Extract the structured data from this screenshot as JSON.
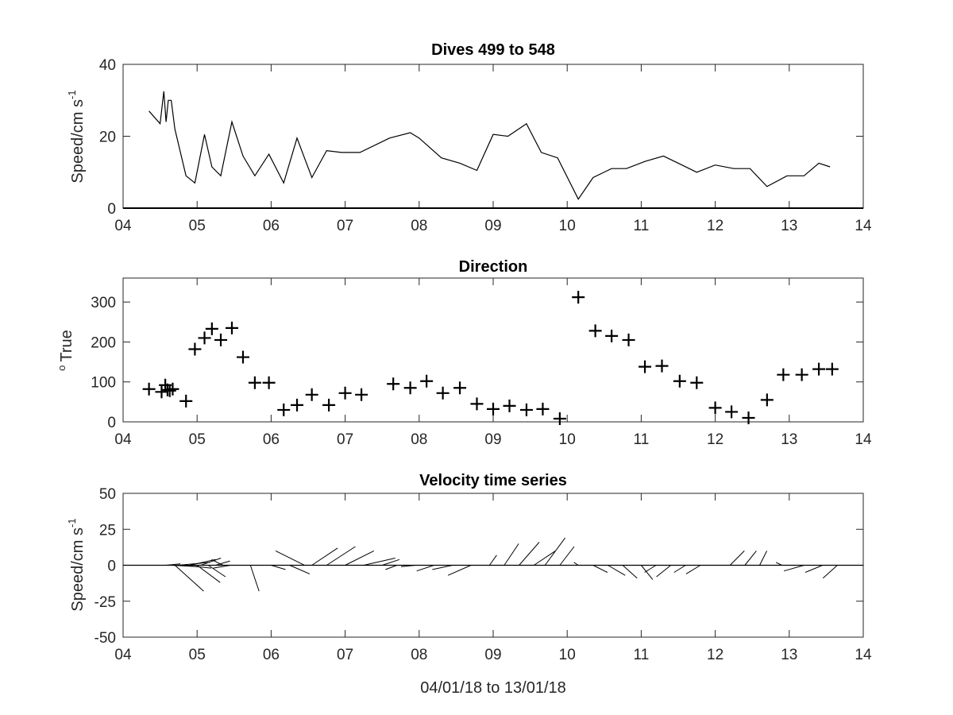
{
  "chart_data": [
    {
      "type": "line",
      "title": "Dives 499 to 548",
      "ylabel": "Speed/cm s",
      "ylabel_sup": "-1",
      "xlim": [
        4,
        14
      ],
      "ylim": [
        0,
        40
      ],
      "xticks": [
        4,
        5,
        6,
        7,
        8,
        9,
        10,
        11,
        12,
        13,
        14
      ],
      "xtick_labels": [
        "04",
        "05",
        "06",
        "07",
        "08",
        "09",
        "10",
        "11",
        "12",
        "13",
        "14"
      ],
      "yticks": [
        0,
        20,
        40
      ],
      "ytick_labels": [
        "0",
        "20",
        "40"
      ],
      "x": [
        4.35,
        4.5,
        4.55,
        4.58,
        4.61,
        4.65,
        4.7,
        4.85,
        4.97,
        5.1,
        5.2,
        5.32,
        5.47,
        5.62,
        5.78,
        5.97,
        6.17,
        6.35,
        6.55,
        6.75,
        6.95,
        7.2,
        7.6,
        7.88,
        8.0,
        8.3,
        8.55,
        8.78,
        9.0,
        9.2,
        9.45,
        9.65,
        9.87,
        10.15,
        10.35,
        10.6,
        10.8,
        11.05,
        11.3,
        11.55,
        11.75,
        12.0,
        12.25,
        12.47,
        12.7,
        12.97,
        13.2,
        13.4,
        13.55
      ],
      "y": [
        27,
        23.5,
        32.5,
        24,
        30,
        30,
        22,
        9,
        7,
        20.5,
        11.5,
        9,
        24,
        14.5,
        9,
        15,
        7,
        19.5,
        8.5,
        16,
        15.5,
        15.5,
        19.5,
        21,
        19.5,
        14,
        12.5,
        10.5,
        20.5,
        20,
        23.5,
        15.5,
        14,
        2.5,
        8.5,
        11,
        11,
        13,
        14.5,
        12,
        10,
        12,
        11,
        11,
        6,
        9,
        9,
        12.5,
        11.5
      ]
    },
    {
      "type": "scatter",
      "title": "Direction",
      "ylabel": "True",
      "ylabel_prefix": "o",
      "marker": "+",
      "xlim": [
        4,
        14
      ],
      "ylim": [
        0,
        360
      ],
      "xticks": [
        4,
        5,
        6,
        7,
        8,
        9,
        10,
        11,
        12,
        13,
        14
      ],
      "xtick_labels": [
        "04",
        "05",
        "06",
        "07",
        "08",
        "09",
        "10",
        "11",
        "12",
        "13",
        "14"
      ],
      "yticks": [
        0,
        100,
        200,
        300
      ],
      "ytick_labels": [
        "0",
        "100",
        "200",
        "300"
      ],
      "x": [
        4.35,
        4.52,
        4.57,
        4.6,
        4.63,
        4.67,
        4.85,
        4.97,
        5.1,
        5.2,
        5.32,
        5.47,
        5.62,
        5.78,
        5.97,
        6.17,
        6.35,
        6.55,
        6.78,
        7.0,
        7.22,
        7.65,
        7.88,
        8.1,
        8.32,
        8.55,
        8.78,
        9.0,
        9.22,
        9.45,
        9.67,
        9.9,
        10.15,
        10.38,
        10.6,
        10.83,
        11.05,
        11.28,
        11.52,
        11.75,
        12.0,
        12.22,
        12.45,
        12.7,
        12.92,
        13.17,
        13.4,
        13.58
      ],
      "y": [
        82,
        75,
        92,
        80,
        78,
        82,
        52,
        182,
        210,
        233,
        205,
        235,
        162,
        98,
        98,
        30,
        42,
        68,
        42,
        72,
        68,
        95,
        85,
        102,
        72,
        85,
        45,
        32,
        40,
        30,
        32,
        8,
        312,
        228,
        215,
        205,
        138,
        140,
        102,
        98,
        35,
        25,
        10,
        55,
        118,
        118,
        132,
        132
      ]
    },
    {
      "type": "line",
      "subtype": "feather",
      "title": "Velocity time series",
      "xlabel": "04/01/18 to 13/01/18",
      "ylabel": "Speed/cm s",
      "ylabel_sup": "-1",
      "xlim": [
        4,
        14
      ],
      "ylim": [
        -50,
        50
      ],
      "xticks": [
        4,
        5,
        6,
        7,
        8,
        9,
        10,
        11,
        12,
        13,
        14
      ],
      "xtick_labels": [
        "04",
        "05",
        "06",
        "07",
        "08",
        "09",
        "10",
        "11",
        "12",
        "13",
        "14"
      ],
      "yticks": [
        -50,
        -25,
        0,
        25,
        50
      ],
      "ytick_labels": [
        "-50",
        "-25",
        "0",
        "25",
        "50"
      ],
      "baseline": 0,
      "x": [
        4.58,
        4.62,
        4.66,
        4.7,
        4.74,
        4.8,
        4.9,
        5.0,
        5.05,
        5.15,
        5.25,
        5.35,
        5.45,
        5.72,
        6.0,
        6.25,
        6.45,
        6.55,
        6.75,
        7.0,
        7.25,
        7.5,
        7.7,
        7.95,
        8.2,
        8.45,
        8.7,
        8.95,
        9.15,
        9.35,
        9.55,
        9.7,
        9.9,
        10.15,
        10.35,
        10.55,
        10.75,
        11.0,
        11.2,
        11.4,
        11.6,
        11.8,
        12.0,
        12.2,
        12.4,
        12.6,
        12.9,
        13.2,
        13.45,
        13.65
      ],
      "u": [
        10,
        15,
        18,
        20,
        22,
        20,
        18,
        16,
        14,
        12,
        10,
        -8,
        -12,
        6,
        10,
        14,
        -20,
        18,
        20,
        20,
        22,
        12,
        -8,
        -10,
        -12,
        -14,
        -16,
        5,
        10,
        14,
        15,
        14,
        10,
        -3,
        10,
        12,
        10,
        8,
        -8,
        -10,
        -8,
        -10,
        -15,
        10,
        8,
        5,
        -4,
        -14,
        -12,
        -10
      ],
      "v": [
        1,
        0,
        -1,
        -18,
        2,
        -2,
        4,
        -12,
        5,
        -8,
        3,
        4,
        -2,
        -18,
        -3,
        -6,
        10,
        12,
        13,
        10,
        5,
        4,
        -3,
        -1,
        -4,
        -3,
        -7,
        7,
        15,
        16,
        10,
        19,
        13,
        2,
        -5,
        -7,
        -9,
        -10,
        -5,
        -8,
        -5,
        -6,
        0,
        10,
        10,
        10,
        2,
        -4,
        -5,
        -9
      ]
    }
  ]
}
